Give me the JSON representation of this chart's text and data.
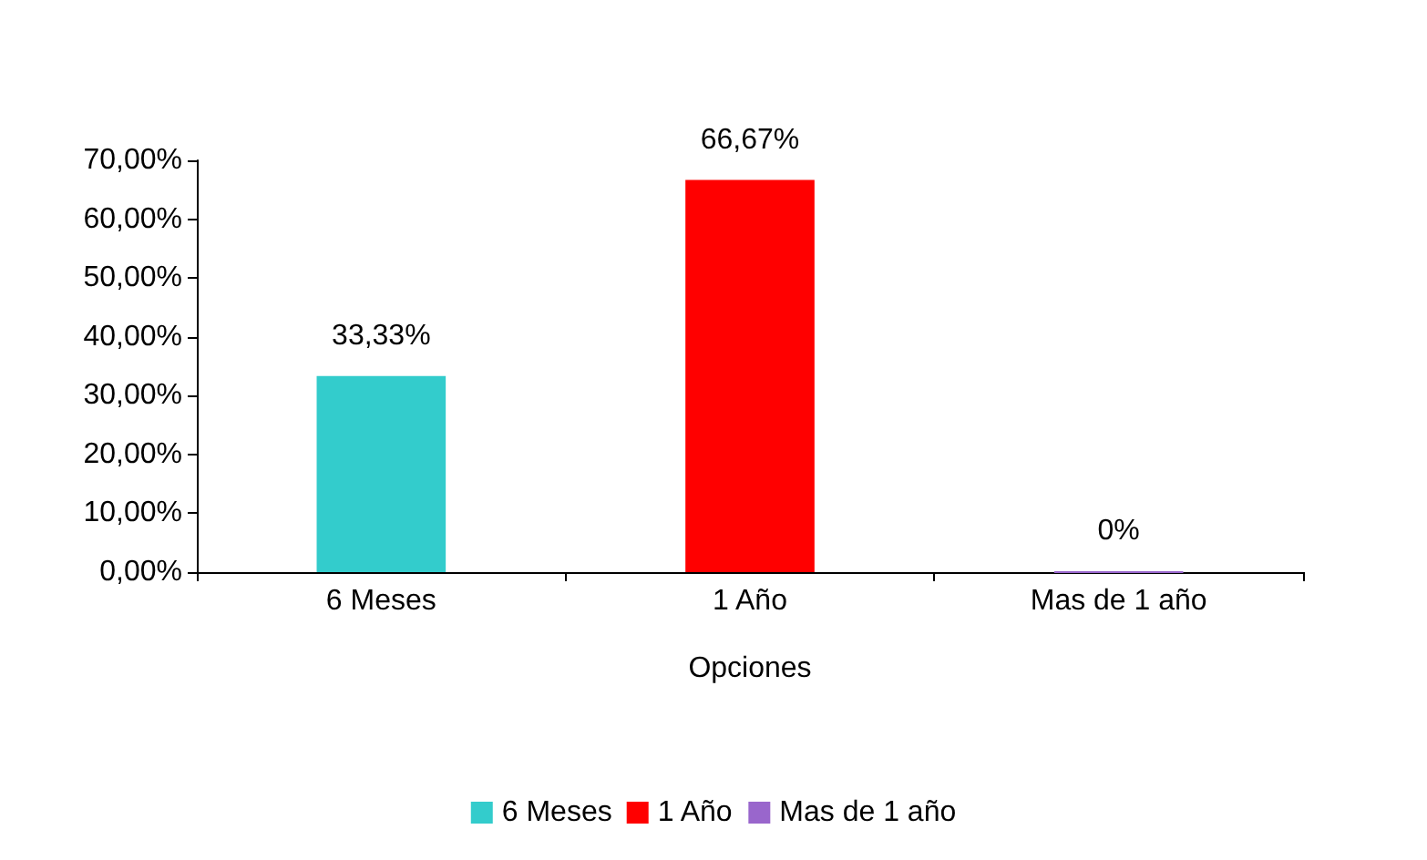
{
  "chart_data": {
    "type": "bar",
    "xlabel": "Opciones",
    "categories": [
      "6 Meses",
      "1 Año",
      "Mas de 1 año"
    ],
    "series": [
      {
        "name": "6 Meses",
        "color": "#33cccc",
        "values": [
          33.33,
          null,
          null
        ],
        "value_labels": [
          "33,33%",
          null,
          null
        ]
      },
      {
        "name": "1 Año",
        "color": "#ff0000",
        "values": [
          null,
          66.67,
          null
        ],
        "value_labels": [
          null,
          "66,67%",
          null
        ]
      },
      {
        "name": "Mas de 1 año",
        "color": "#9966cc",
        "values": [
          null,
          null,
          0
        ],
        "value_labels": [
          null,
          null,
          "0%"
        ]
      }
    ],
    "stacked": true,
    "ylim": [
      0,
      70
    ],
    "yticks": [
      {
        "value": 0,
        "label": "0,00%"
      },
      {
        "value": 10,
        "label": "10,00%"
      },
      {
        "value": 20,
        "label": "20,00%"
      },
      {
        "value": 30,
        "label": "30,00%"
      },
      {
        "value": 40,
        "label": "40,00%"
      },
      {
        "value": 50,
        "label": "50,00%"
      },
      {
        "value": 60,
        "label": "60,00%"
      },
      {
        "value": 70,
        "label": "70,00%"
      }
    ],
    "grid": false,
    "legend": "bottom"
  }
}
